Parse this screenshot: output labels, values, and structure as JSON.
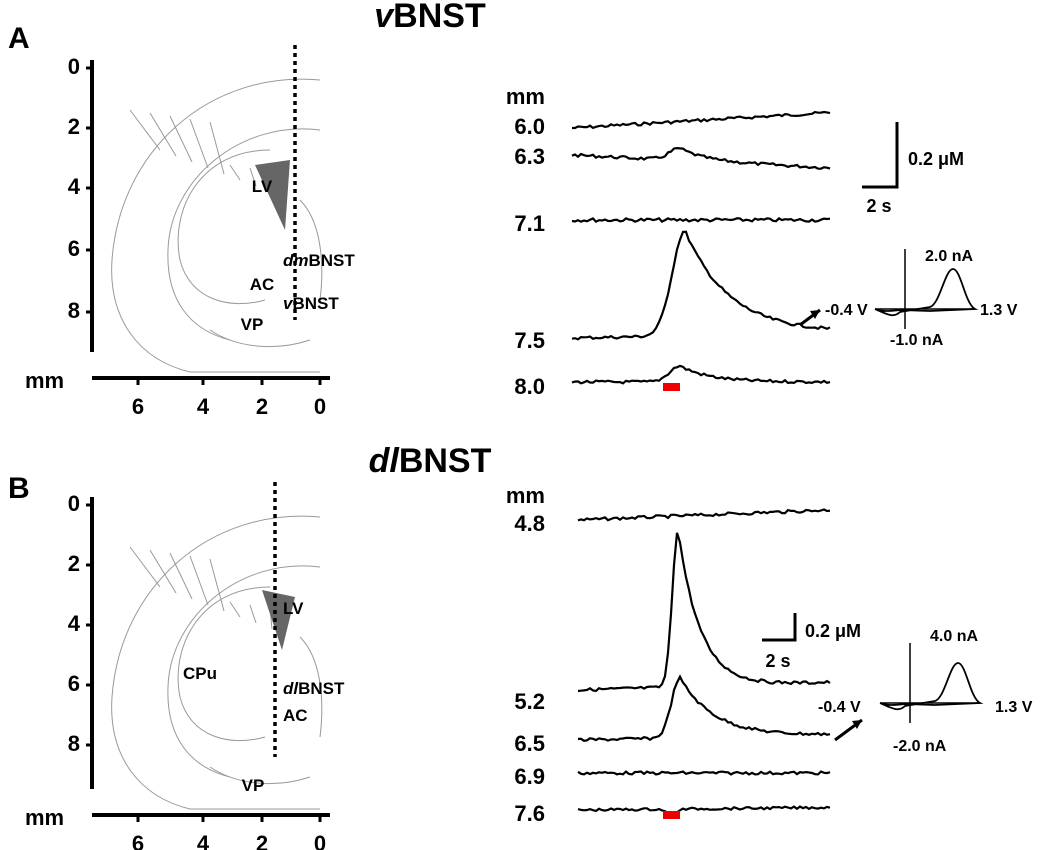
{
  "panels": [
    {
      "label": "A",
      "title": {
        "italic": "v",
        "text": "BNST"
      },
      "section": {
        "y_ticks": [
          "0",
          "2",
          "4",
          "6",
          "8"
        ],
        "x_unit": "mm",
        "x_ticks": [
          "6",
          "4",
          "2",
          "0"
        ],
        "regions": [
          {
            "text": "LV"
          },
          {
            "italic": "dm",
            "text": "BNST"
          },
          {
            "text": "AC"
          },
          {
            "italic": "v",
            "text": "BNST"
          },
          {
            "text": "VP"
          }
        ]
      },
      "depths": {
        "unit": "mm",
        "labels": [
          "6.0",
          "6.3",
          "7.1",
          "7.5",
          "8.0"
        ]
      },
      "scale": {
        "conc": "0.2 μM",
        "time": "2 s"
      },
      "voltammogram": {
        "top": "2.0 nA",
        "left": "-0.4 V",
        "right": "1.3 V",
        "bottom": "-1.0 nA"
      }
    },
    {
      "label": "B",
      "title": {
        "italic": "dl",
        "text": "BNST"
      },
      "section": {
        "y_ticks": [
          "0",
          "2",
          "4",
          "6",
          "8"
        ],
        "x_unit": "mm",
        "x_ticks": [
          "6",
          "4",
          "2",
          "0"
        ],
        "regions": [
          {
            "text": "LV"
          },
          {
            "text": "CPu"
          },
          {
            "italic": "dl",
            "text": "BNST"
          },
          {
            "text": "AC"
          },
          {
            "text": "VP"
          }
        ]
      },
      "depths": {
        "unit": "mm",
        "labels": [
          "4.8",
          "5.2",
          "6.5",
          "6.9",
          "7.6"
        ]
      },
      "scale": {
        "conc": "0.2 μM",
        "time": "2 s"
      },
      "voltammogram": {
        "top": "4.0 nA",
        "left": "-0.4 V",
        "right": "1.3 V",
        "bottom": "-2.0 nA"
      }
    }
  ]
}
